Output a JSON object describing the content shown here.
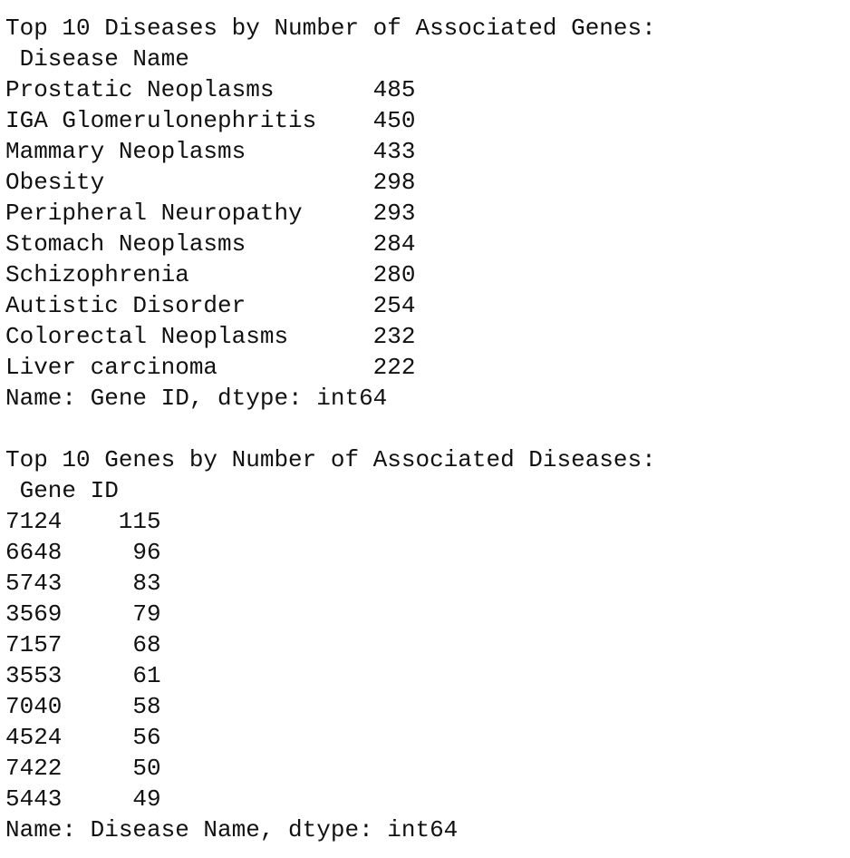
{
  "sections": [
    {
      "title": "Top 10 Diseases by Number of Associated Genes:",
      "index_name": "Disease Name",
      "rows": [
        [
          "Prostatic Neoplasms",
          485
        ],
        [
          "IGA Glomerulonephritis",
          450
        ],
        [
          "Mammary Neoplasms",
          433
        ],
        [
          "Obesity",
          298
        ],
        [
          "Peripheral Neuropathy",
          293
        ],
        [
          "Stomach Neoplasms",
          284
        ],
        [
          "Schizophrenia",
          280
        ],
        [
          "Autistic Disorder",
          254
        ],
        [
          "Colorectal Neoplasms",
          232
        ],
        [
          "Liver carcinoma",
          222
        ]
      ],
      "footer": "Name: Gene ID, dtype: int64"
    },
    {
      "title": "Top 10 Genes by Number of Associated Diseases:",
      "index_name": "Gene ID",
      "rows": [
        [
          7124,
          115
        ],
        [
          6648,
          96
        ],
        [
          5743,
          83
        ],
        [
          3569,
          79
        ],
        [
          7157,
          68
        ],
        [
          3553,
          61
        ],
        [
          7040,
          58
        ],
        [
          4524,
          56
        ],
        [
          7422,
          50
        ],
        [
          5443,
          49
        ]
      ],
      "footer": "Name: Disease Name, dtype: int64"
    }
  ]
}
